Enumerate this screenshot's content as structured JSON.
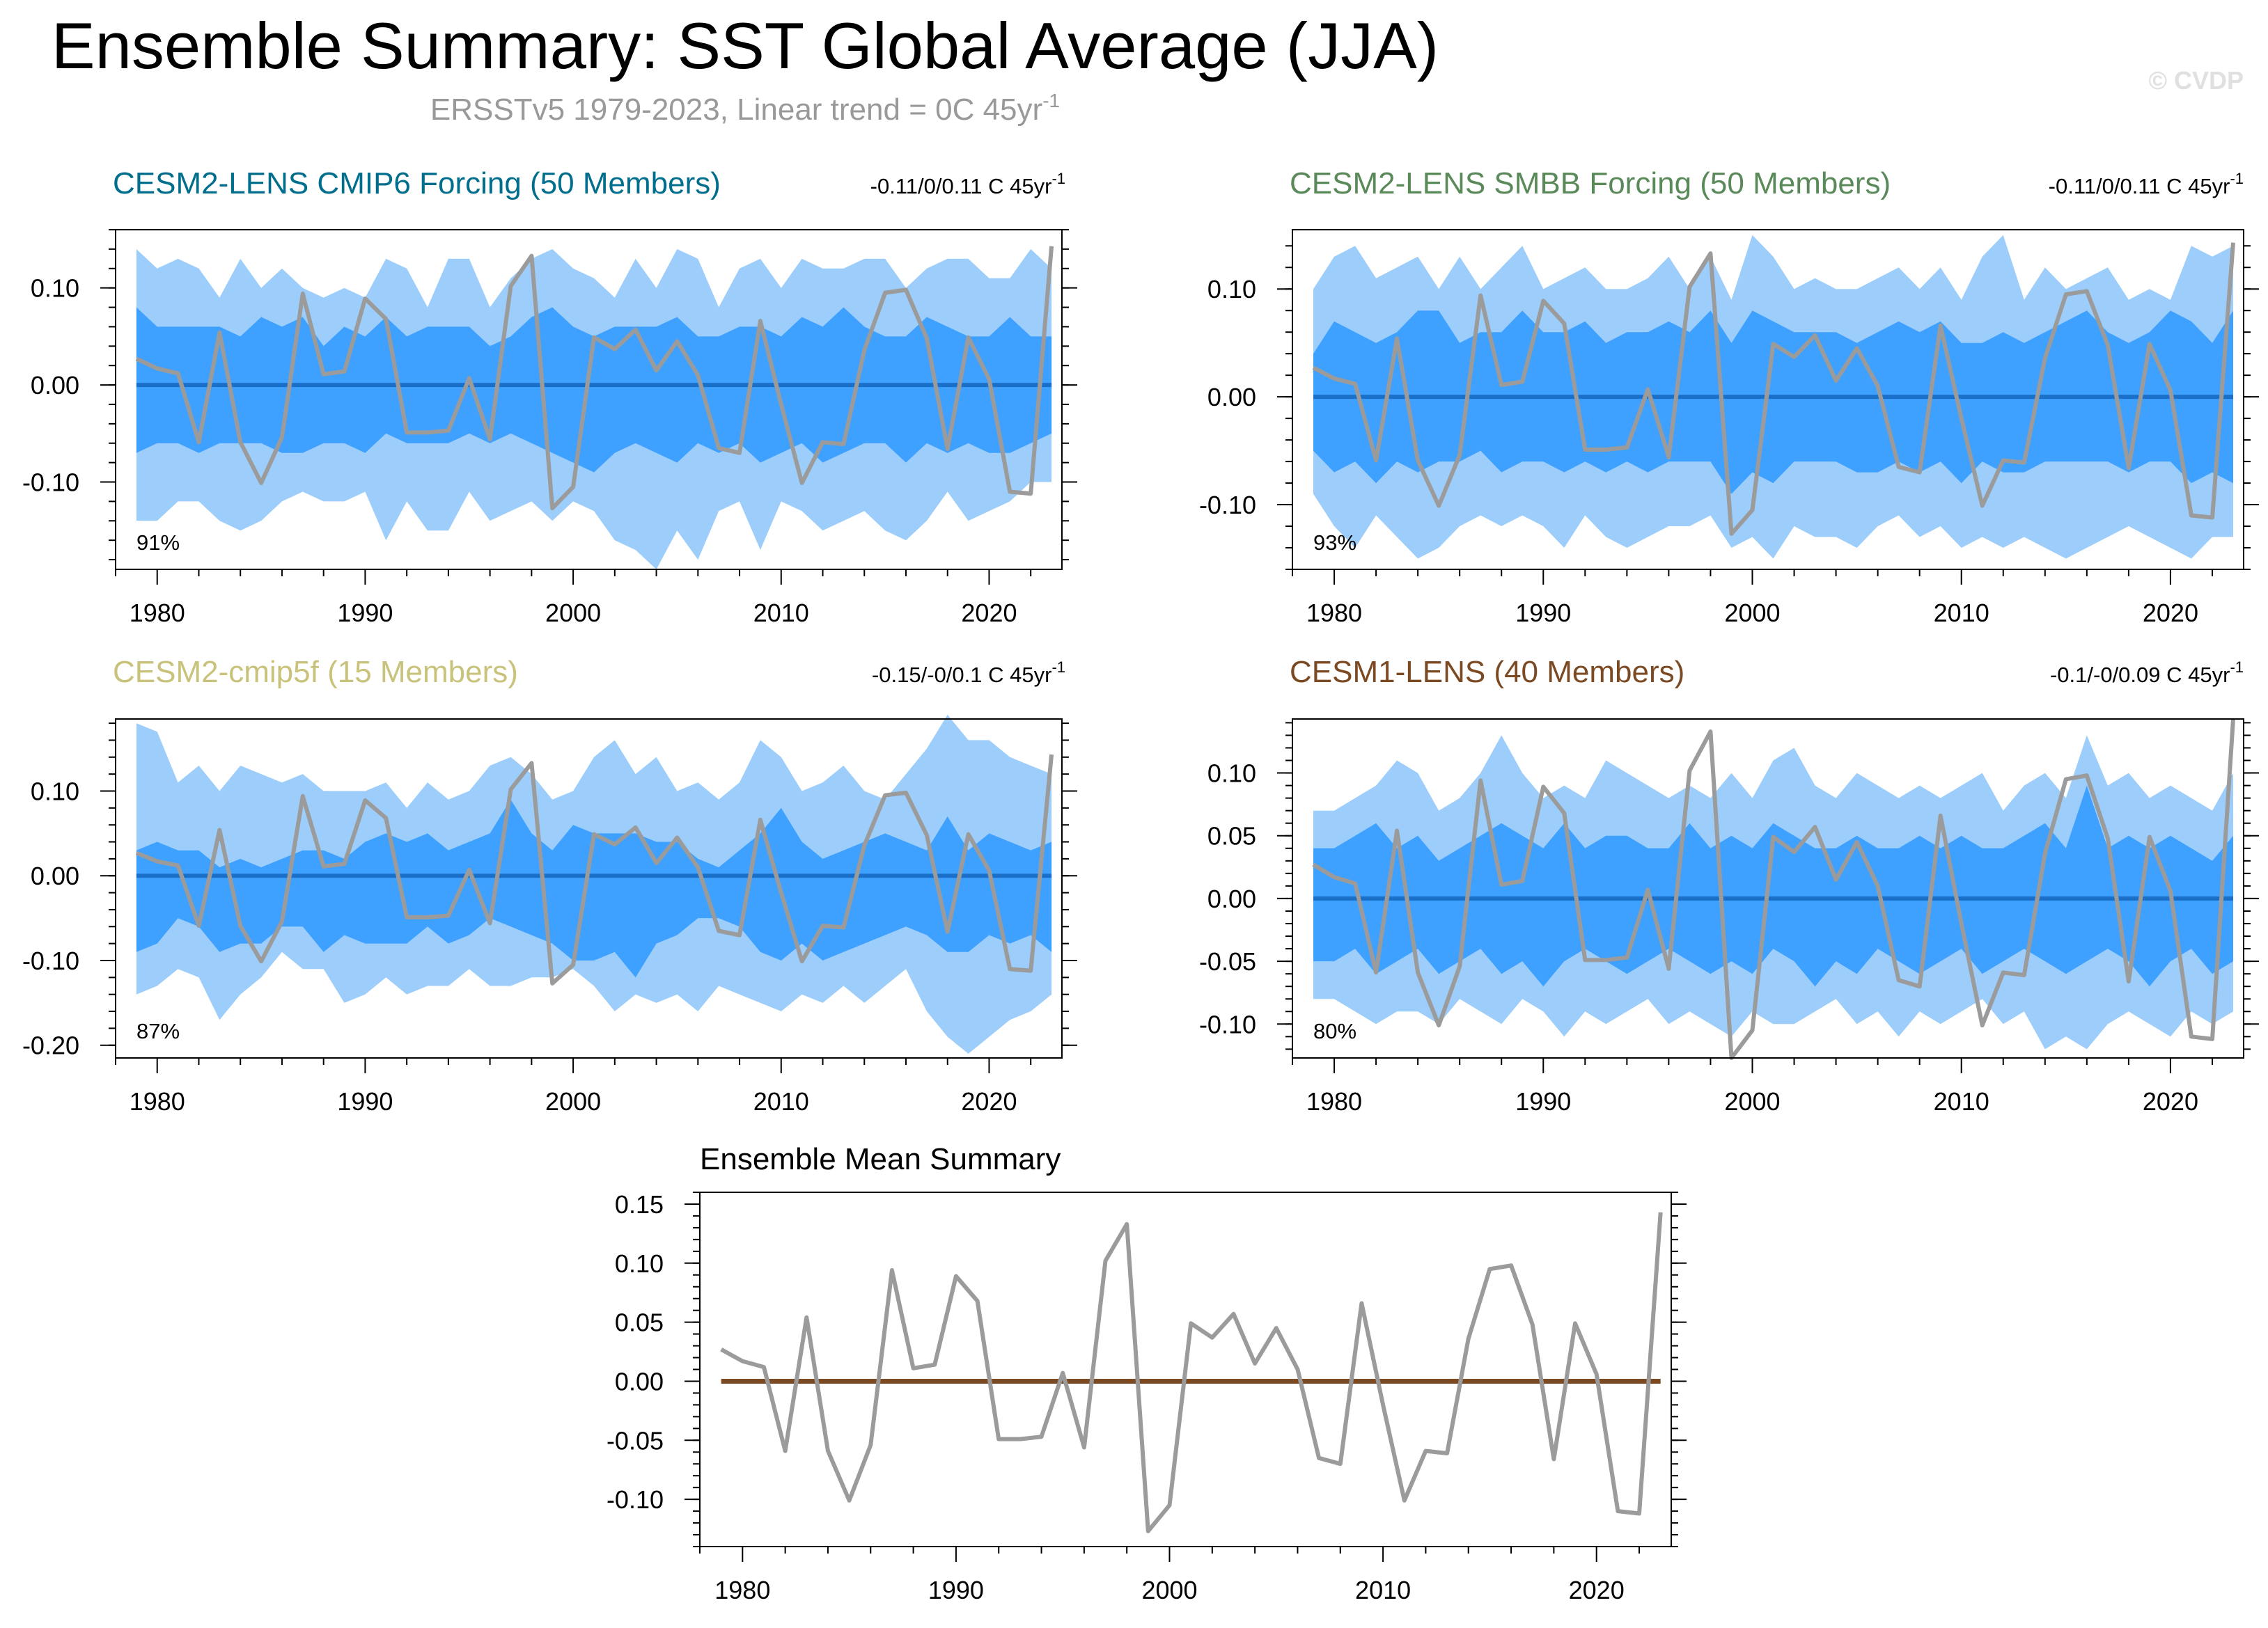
{
  "figure": {
    "title": "Ensemble Summary: SST Global Average (JJA)",
    "subtitle": "ERSSTv5 1979-2023, Linear trend = 0C 45yr",
    "subtitle_sup": "-1",
    "watermark": "© CVDP"
  },
  "colors": {
    "outer_band": "#9ccdfb",
    "inner_band": "#3ea0ff",
    "ensemble_mean_line": "#1a6fc9",
    "observations_line": "#9b9b9b",
    "summary_mean_line": "#7b4a22",
    "panel1_title": "#006e8c",
    "panel2_title": "#5a8a5a",
    "panel3_title": "#c8c27a",
    "panel4_title": "#7b4a22"
  },
  "chart_data": [
    {
      "type": "area",
      "title": "CESM2-LENS CMIP6 Forcing (50 Members)",
      "trend_label": "-0.11/0/0.11 C 45yr",
      "trend_sup": "-1",
      "percent_label": "91%",
      "xlim": [
        1978,
        2023.5
      ],
      "ylim": [
        -0.19,
        0.16
      ],
      "xticks": [
        1980,
        1990,
        2000,
        2010,
        2020
      ],
      "yticks": [
        -0.1,
        0.0,
        0.1
      ],
      "ytick_labels": [
        "-0.10",
        "0.00",
        "0.10"
      ],
      "outer_upper": [
        0.14,
        0.12,
        0.13,
        0.12,
        0.09,
        0.13,
        0.1,
        0.12,
        0.1,
        0.09,
        0.1,
        0.09,
        0.13,
        0.12,
        0.08,
        0.13,
        0.13,
        0.08,
        0.11,
        0.13,
        0.14,
        0.12,
        0.11,
        0.09,
        0.13,
        0.1,
        0.14,
        0.13,
        0.08,
        0.12,
        0.13,
        0.1,
        0.13,
        0.12,
        0.12,
        0.13,
        0.13,
        0.1,
        0.12,
        0.13,
        0.13,
        0.11,
        0.11,
        0.14,
        0.12
      ],
      "inner_upper": [
        0.08,
        0.06,
        0.06,
        0.06,
        0.06,
        0.05,
        0.07,
        0.06,
        0.07,
        0.04,
        0.06,
        0.05,
        0.07,
        0.05,
        0.06,
        0.06,
        0.06,
        0.04,
        0.05,
        0.07,
        0.08,
        0.06,
        0.05,
        0.06,
        0.06,
        0.06,
        0.07,
        0.05,
        0.05,
        0.06,
        0.06,
        0.05,
        0.07,
        0.06,
        0.08,
        0.06,
        0.05,
        0.05,
        0.07,
        0.06,
        0.05,
        0.05,
        0.07,
        0.05,
        0.05
      ],
      "ensemble_mean": [
        0,
        0,
        0,
        0,
        0,
        0,
        0,
        0,
        0,
        0,
        0,
        0,
        0,
        0,
        0,
        0,
        0,
        0,
        0,
        0,
        0,
        0,
        0,
        0,
        0,
        0,
        0,
        0,
        0,
        0,
        0,
        0,
        0,
        0,
        0,
        0,
        0,
        0,
        0,
        0,
        0,
        0,
        0,
        0,
        0
      ],
      "inner_lower": [
        -0.07,
        -0.06,
        -0.06,
        -0.07,
        -0.06,
        -0.06,
        -0.06,
        -0.07,
        -0.07,
        -0.06,
        -0.06,
        -0.07,
        -0.05,
        -0.06,
        -0.06,
        -0.06,
        -0.05,
        -0.06,
        -0.05,
        -0.06,
        -0.07,
        -0.08,
        -0.09,
        -0.07,
        -0.06,
        -0.07,
        -0.08,
        -0.06,
        -0.07,
        -0.06,
        -0.08,
        -0.07,
        -0.06,
        -0.08,
        -0.07,
        -0.06,
        -0.06,
        -0.08,
        -0.06,
        -0.07,
        -0.06,
        -0.07,
        -0.07,
        -0.06,
        -0.05
      ],
      "outer_lower": [
        -0.14,
        -0.14,
        -0.12,
        -0.12,
        -0.14,
        -0.15,
        -0.14,
        -0.12,
        -0.11,
        -0.12,
        -0.12,
        -0.11,
        -0.16,
        -0.12,
        -0.15,
        -0.15,
        -0.11,
        -0.14,
        -0.13,
        -0.12,
        -0.14,
        -0.12,
        -0.13,
        -0.16,
        -0.17,
        -0.19,
        -0.15,
        -0.18,
        -0.13,
        -0.12,
        -0.17,
        -0.12,
        -0.13,
        -0.15,
        -0.14,
        -0.13,
        -0.15,
        -0.16,
        -0.14,
        -0.11,
        -0.14,
        -0.13,
        -0.12,
        -0.1,
        -0.1
      ]
    },
    {
      "type": "area",
      "title": "CESM2-LENS SMBB Forcing (50 Members)",
      "trend_label": "-0.11/0/0.11 C 45yr",
      "trend_sup": "-1",
      "percent_label": "93%",
      "xlim": [
        1978,
        2023.5
      ],
      "ylim": [
        -0.16,
        0.155
      ],
      "xticks": [
        1980,
        1990,
        2000,
        2010,
        2020
      ],
      "yticks": [
        -0.1,
        0.0,
        0.1
      ],
      "ytick_labels": [
        "-0.10",
        "0.00",
        "0.10"
      ],
      "outer_upper": [
        0.1,
        0.13,
        0.14,
        0.11,
        0.12,
        0.13,
        0.1,
        0.13,
        0.1,
        0.12,
        0.14,
        0.1,
        0.11,
        0.12,
        0.1,
        0.1,
        0.11,
        0.13,
        0.1,
        0.13,
        0.09,
        0.15,
        0.13,
        0.1,
        0.11,
        0.1,
        0.1,
        0.11,
        0.12,
        0.1,
        0.12,
        0.09,
        0.13,
        0.15,
        0.09,
        0.12,
        0.1,
        0.11,
        0.12,
        0.09,
        0.1,
        0.09,
        0.14,
        0.13,
        0.14
      ],
      "inner_upper": [
        0.04,
        0.07,
        0.06,
        0.05,
        0.06,
        0.08,
        0.08,
        0.05,
        0.06,
        0.06,
        0.08,
        0.06,
        0.06,
        0.07,
        0.05,
        0.06,
        0.06,
        0.07,
        0.06,
        0.08,
        0.05,
        0.08,
        0.07,
        0.06,
        0.06,
        0.06,
        0.05,
        0.06,
        0.07,
        0.06,
        0.07,
        0.05,
        0.05,
        0.06,
        0.05,
        0.06,
        0.07,
        0.08,
        0.06,
        0.05,
        0.06,
        0.08,
        0.07,
        0.05,
        0.08
      ],
      "ensemble_mean": [
        0,
        0,
        0,
        0,
        0,
        0,
        0,
        0,
        0,
        0,
        0,
        0,
        0,
        0,
        0,
        0,
        0,
        0,
        0,
        0,
        0,
        0,
        0,
        0,
        0,
        0,
        0,
        0,
        0,
        0,
        0,
        0,
        0,
        0,
        0,
        0,
        0,
        0,
        0,
        0,
        0,
        0,
        0,
        0,
        0
      ],
      "inner_lower": [
        -0.05,
        -0.07,
        -0.06,
        -0.08,
        -0.06,
        -0.07,
        -0.06,
        -0.06,
        -0.05,
        -0.07,
        -0.06,
        -0.06,
        -0.07,
        -0.06,
        -0.07,
        -0.06,
        -0.07,
        -0.06,
        -0.06,
        -0.06,
        -0.09,
        -0.07,
        -0.08,
        -0.06,
        -0.06,
        -0.06,
        -0.07,
        -0.07,
        -0.06,
        -0.07,
        -0.06,
        -0.08,
        -0.06,
        -0.07,
        -0.07,
        -0.06,
        -0.06,
        -0.06,
        -0.06,
        -0.07,
        -0.06,
        -0.06,
        -0.08,
        -0.07,
        -0.08
      ],
      "outer_lower": [
        -0.09,
        -0.12,
        -0.14,
        -0.11,
        -0.13,
        -0.15,
        -0.14,
        -0.12,
        -0.11,
        -0.12,
        -0.11,
        -0.12,
        -0.14,
        -0.11,
        -0.13,
        -0.14,
        -0.13,
        -0.12,
        -0.12,
        -0.11,
        -0.14,
        -0.13,
        -0.15,
        -0.12,
        -0.13,
        -0.13,
        -0.14,
        -0.12,
        -0.11,
        -0.13,
        -0.12,
        -0.14,
        -0.13,
        -0.14,
        -0.13,
        -0.14,
        -0.15,
        -0.14,
        -0.13,
        -0.12,
        -0.13,
        -0.14,
        -0.15,
        -0.13,
        -0.13
      ]
    },
    {
      "type": "area",
      "title": "CESM2-cmip5f (15 Members)",
      "trend_label": "-0.15/-0/0.1 C 45yr",
      "trend_sup": "-1",
      "percent_label": "87%",
      "xlim": [
        1978,
        2023.5
      ],
      "ylim": [
        -0.215,
        0.185
      ],
      "xticks": [
        1980,
        1990,
        2000,
        2010,
        2020
      ],
      "yticks": [
        -0.2,
        -0.1,
        0.0,
        0.1
      ],
      "ytick_labels": [
        "-0.20",
        "-0.10",
        "0.00",
        "0.10"
      ],
      "outer_upper": [
        0.18,
        0.17,
        0.11,
        0.13,
        0.1,
        0.13,
        0.12,
        0.11,
        0.12,
        0.1,
        0.1,
        0.1,
        0.11,
        0.08,
        0.11,
        0.09,
        0.1,
        0.13,
        0.14,
        0.12,
        0.09,
        0.1,
        0.14,
        0.16,
        0.12,
        0.14,
        0.1,
        0.11,
        0.09,
        0.11,
        0.16,
        0.14,
        0.1,
        0.11,
        0.13,
        0.1,
        0.09,
        0.12,
        0.15,
        0.19,
        0.16,
        0.16,
        0.14,
        0.13,
        0.12
      ],
      "inner_upper": [
        0.03,
        0.04,
        0.03,
        0.03,
        0.01,
        0.02,
        0.01,
        0.02,
        0.03,
        0.03,
        0.02,
        0.04,
        0.05,
        0.04,
        0.05,
        0.03,
        0.04,
        0.05,
        0.09,
        0.05,
        0.03,
        0.06,
        0.05,
        0.05,
        0.05,
        0.04,
        0.04,
        0.02,
        0.01,
        0.03,
        0.05,
        0.08,
        0.04,
        0.02,
        0.03,
        0.04,
        0.05,
        0.04,
        0.03,
        0.07,
        0.03,
        0.05,
        0.04,
        0.03,
        0.04
      ],
      "ensemble_mean": [
        0,
        0,
        0,
        0,
        0,
        0,
        0,
        0,
        0,
        0,
        0,
        0,
        0,
        0,
        0,
        0,
        0,
        0,
        0,
        0,
        0,
        0,
        0,
        0,
        0,
        0,
        0,
        0,
        0,
        0,
        0,
        0,
        0,
        0,
        0,
        0,
        0,
        0,
        0,
        0,
        0,
        0,
        0,
        0,
        0
      ],
      "inner_lower": [
        -0.09,
        -0.08,
        -0.05,
        -0.06,
        -0.09,
        -0.08,
        -0.08,
        -0.06,
        -0.06,
        -0.09,
        -0.07,
        -0.08,
        -0.08,
        -0.08,
        -0.06,
        -0.08,
        -0.07,
        -0.05,
        -0.06,
        -0.07,
        -0.08,
        -0.1,
        -0.1,
        -0.09,
        -0.12,
        -0.08,
        -0.07,
        -0.05,
        -0.05,
        -0.06,
        -0.09,
        -0.1,
        -0.08,
        -0.1,
        -0.09,
        -0.08,
        -0.07,
        -0.06,
        -0.07,
        -0.09,
        -0.09,
        -0.07,
        -0.08,
        -0.07,
        -0.09
      ],
      "outer_lower": [
        -0.14,
        -0.13,
        -0.11,
        -0.12,
        -0.17,
        -0.14,
        -0.12,
        -0.09,
        -0.11,
        -0.11,
        -0.15,
        -0.14,
        -0.12,
        -0.14,
        -0.13,
        -0.13,
        -0.11,
        -0.13,
        -0.13,
        -0.12,
        -0.12,
        -0.11,
        -0.13,
        -0.16,
        -0.14,
        -0.15,
        -0.14,
        -0.16,
        -0.13,
        -0.14,
        -0.15,
        -0.16,
        -0.14,
        -0.15,
        -0.13,
        -0.15,
        -0.13,
        -0.11,
        -0.16,
        -0.19,
        -0.21,
        -0.19,
        -0.17,
        -0.16,
        -0.14
      ]
    },
    {
      "type": "area",
      "title": "CESM1-LENS (40 Members)",
      "trend_label": "-0.1/-0/0.09 C 45yr",
      "trend_sup": "-1",
      "percent_label": "80%",
      "xlim": [
        1978,
        2023.5
      ],
      "ylim": [
        -0.127,
        0.143
      ],
      "xticks": [
        1980,
        1990,
        2000,
        2010,
        2020
      ],
      "yticks": [
        -0.1,
        -0.05,
        0.0,
        0.05,
        0.1
      ],
      "ytick_labels": [
        "-0.10",
        "-0.05",
        "0.00",
        "0.05",
        "0.10"
      ],
      "outer_upper": [
        0.07,
        0.07,
        0.08,
        0.09,
        0.11,
        0.1,
        0.07,
        0.08,
        0.1,
        0.13,
        0.1,
        0.08,
        0.09,
        0.08,
        0.11,
        0.1,
        0.09,
        0.08,
        0.09,
        0.08,
        0.1,
        0.08,
        0.11,
        0.12,
        0.09,
        0.08,
        0.1,
        0.09,
        0.08,
        0.09,
        0.08,
        0.09,
        0.1,
        0.07,
        0.09,
        0.1,
        0.08,
        0.13,
        0.09,
        0.1,
        0.08,
        0.09,
        0.08,
        0.07,
        0.1
      ],
      "inner_upper": [
        0.04,
        0.04,
        0.05,
        0.06,
        0.04,
        0.05,
        0.03,
        0.04,
        0.05,
        0.06,
        0.05,
        0.04,
        0.06,
        0.04,
        0.05,
        0.05,
        0.04,
        0.04,
        0.06,
        0.04,
        0.05,
        0.04,
        0.06,
        0.05,
        0.04,
        0.04,
        0.05,
        0.04,
        0.04,
        0.05,
        0.04,
        0.05,
        0.04,
        0.04,
        0.05,
        0.06,
        0.04,
        0.09,
        0.04,
        0.05,
        0.04,
        0.05,
        0.04,
        0.03,
        0.05
      ],
      "ensemble_mean": [
        0,
        0,
        0,
        0,
        0,
        0,
        0,
        0,
        0,
        0,
        0,
        0,
        0,
        0,
        0,
        0,
        0,
        0,
        0,
        0,
        0,
        0,
        0,
        0,
        0,
        0,
        0,
        0,
        0,
        0,
        0,
        0,
        0,
        0,
        0,
        0,
        0,
        0,
        0,
        0,
        0,
        0,
        0,
        0,
        0
      ],
      "inner_lower": [
        -0.05,
        -0.05,
        -0.04,
        -0.06,
        -0.05,
        -0.04,
        -0.06,
        -0.05,
        -0.04,
        -0.06,
        -0.05,
        -0.07,
        -0.05,
        -0.04,
        -0.05,
        -0.06,
        -0.05,
        -0.04,
        -0.05,
        -0.06,
        -0.05,
        -0.06,
        -0.04,
        -0.05,
        -0.07,
        -0.05,
        -0.06,
        -0.04,
        -0.05,
        -0.06,
        -0.05,
        -0.04,
        -0.06,
        -0.05,
        -0.04,
        -0.05,
        -0.06,
        -0.05,
        -0.04,
        -0.05,
        -0.07,
        -0.05,
        -0.04,
        -0.06,
        -0.05
      ],
      "outer_lower": [
        -0.08,
        -0.08,
        -0.09,
        -0.1,
        -0.09,
        -0.09,
        -0.1,
        -0.08,
        -0.09,
        -0.1,
        -0.08,
        -0.09,
        -0.11,
        -0.09,
        -0.1,
        -0.09,
        -0.08,
        -0.1,
        -0.09,
        -0.1,
        -0.11,
        -0.09,
        -0.1,
        -0.1,
        -0.09,
        -0.08,
        -0.1,
        -0.09,
        -0.11,
        -0.09,
        -0.1,
        -0.09,
        -0.08,
        -0.1,
        -0.09,
        -0.12,
        -0.11,
        -0.12,
        -0.1,
        -0.09,
        -0.1,
        -0.11,
        -0.09,
        -0.1,
        -0.09
      ]
    },
    {
      "type": "line",
      "title": "Ensemble Mean Summary",
      "xlim": [
        1978,
        2023.5
      ],
      "ylim": [
        -0.14,
        0.16
      ],
      "xticks": [
        1980,
        1990,
        2000,
        2010,
        2020
      ],
      "yticks": [
        -0.1,
        -0.05,
        0.0,
        0.05,
        0.1,
        0.15
      ],
      "ytick_labels": [
        "-0.10",
        "-0.05",
        "0.00",
        "0.05",
        "0.10",
        "0.15"
      ],
      "ensemble_mean": [
        0,
        0,
        0,
        0,
        0,
        0,
        0,
        0,
        0,
        0,
        0,
        0,
        0,
        0,
        0,
        0,
        0,
        0,
        0,
        0,
        0,
        0,
        0,
        0,
        0,
        0,
        0,
        0,
        0,
        0,
        0,
        0,
        0,
        0,
        0,
        0,
        0,
        0,
        0,
        0,
        0,
        0,
        0,
        0,
        0
      ]
    }
  ],
  "observations": {
    "name": "ERSSTv5",
    "x_start": 1979,
    "values": [
      0.027,
      0.017,
      0.012,
      -0.059,
      0.054,
      -0.059,
      -0.101,
      -0.054,
      0.094,
      0.011,
      0.014,
      0.089,
      0.068,
      -0.049,
      -0.049,
      -0.047,
      0.007,
      -0.056,
      0.102,
      0.133,
      -0.127,
      -0.105,
      0.049,
      0.037,
      0.057,
      0.015,
      0.045,
      0.01,
      -0.065,
      -0.07,
      0.066,
      -0.02,
      -0.101,
      -0.059,
      -0.061,
      0.036,
      0.095,
      0.098,
      0.048,
      -0.066,
      0.049,
      0.006,
      -0.11,
      -0.112,
      0.143
    ]
  }
}
